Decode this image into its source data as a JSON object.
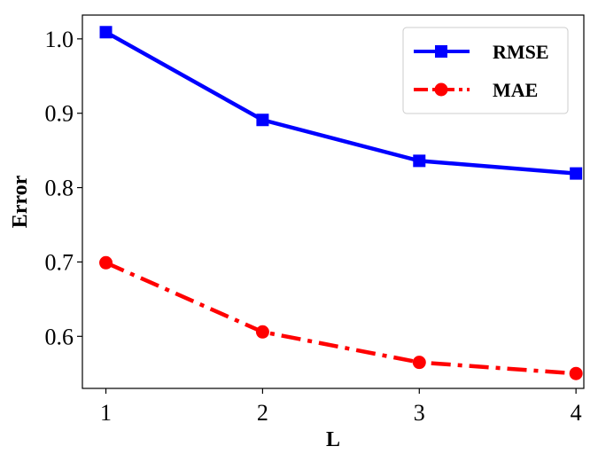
{
  "chart_data": {
    "type": "line",
    "title": "",
    "xlabel": "L",
    "ylabel": "Error",
    "x": [
      1,
      2,
      3,
      4
    ],
    "x_tick_labels": [
      "1",
      "2",
      "3",
      "4"
    ],
    "y_tick_labels": [
      "0.6",
      "0.7",
      "0.8",
      "0.9",
      "1.0"
    ],
    "y_ticks": [
      0.6,
      0.7,
      0.8,
      0.9,
      1.0
    ],
    "xlim": [
      0.85,
      4.05
    ],
    "ylim": [
      0.53,
      1.032
    ],
    "grid": false,
    "legend_position": "top-right",
    "series": [
      {
        "name": "RMSE",
        "values": [
          1.009,
          0.891,
          0.836,
          0.819
        ],
        "color": "#0000ff",
        "marker": "square",
        "linestyle": "solid"
      },
      {
        "name": "MAE",
        "values": [
          0.699,
          0.606,
          0.565,
          0.55
        ],
        "color": "#ff0000",
        "marker": "circle",
        "linestyle": "dashdot"
      }
    ]
  }
}
